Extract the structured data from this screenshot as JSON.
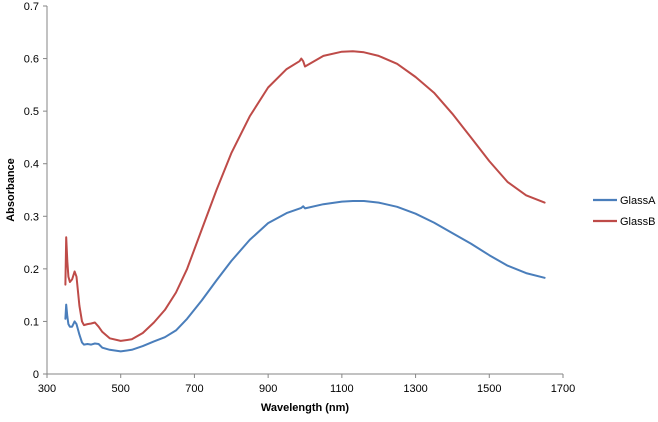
{
  "chart_data": {
    "type": "line",
    "title": "",
    "xlabel": "Wavelength (nm)",
    "ylabel": "Absorbance",
    "xlim": [
      300,
      1700
    ],
    "ylim": [
      0,
      0.7
    ],
    "x_ticks": [
      "300",
      "500",
      "700",
      "900",
      "1100",
      "1300",
      "1500",
      "1700"
    ],
    "y_ticks": [
      "0",
      "0.1",
      "0.2",
      "0.3",
      "0.4",
      "0.5",
      "0.6",
      "0.7"
    ],
    "grid": false,
    "legend_position": "right",
    "series": [
      {
        "name": "GlassA",
        "color": "#4A7EBB",
        "x": [
          350,
          352,
          355,
          358,
          362,
          368,
          375,
          380,
          388,
          395,
          400,
          410,
          420,
          430,
          440,
          450,
          470,
          500,
          530,
          560,
          590,
          620,
          650,
          680,
          720,
          760,
          800,
          850,
          900,
          950,
          990,
          995,
          1000,
          1050,
          1100,
          1130,
          1160,
          1200,
          1250,
          1300,
          1350,
          1400,
          1450,
          1500,
          1550,
          1600,
          1650
        ],
        "y": [
          0.105,
          0.132,
          0.11,
          0.095,
          0.09,
          0.09,
          0.1,
          0.095,
          0.075,
          0.06,
          0.056,
          0.057,
          0.056,
          0.058,
          0.057,
          0.05,
          0.046,
          0.043,
          0.046,
          0.053,
          0.062,
          0.07,
          0.083,
          0.105,
          0.14,
          0.178,
          0.215,
          0.255,
          0.287,
          0.306,
          0.316,
          0.319,
          0.315,
          0.323,
          0.328,
          0.329,
          0.329,
          0.326,
          0.318,
          0.305,
          0.288,
          0.268,
          0.248,
          0.226,
          0.206,
          0.192,
          0.183
        ]
      },
      {
        "name": "GlassB",
        "color": "#BE4B48",
        "x": [
          350,
          352,
          355,
          358,
          362,
          368,
          375,
          380,
          388,
          395,
          400,
          410,
          420,
          430,
          440,
          450,
          470,
          500,
          530,
          560,
          590,
          620,
          650,
          680,
          720,
          760,
          800,
          850,
          900,
          950,
          985,
          990,
          995,
          1000,
          1050,
          1100,
          1130,
          1160,
          1200,
          1250,
          1300,
          1350,
          1400,
          1450,
          1500,
          1550,
          1600,
          1650
        ],
        "y": [
          0.17,
          0.26,
          0.215,
          0.185,
          0.175,
          0.18,
          0.195,
          0.185,
          0.13,
          0.1,
          0.093,
          0.095,
          0.096,
          0.098,
          0.09,
          0.08,
          0.068,
          0.063,
          0.066,
          0.078,
          0.098,
          0.122,
          0.155,
          0.2,
          0.275,
          0.35,
          0.42,
          0.49,
          0.545,
          0.58,
          0.595,
          0.6,
          0.595,
          0.585,
          0.605,
          0.613,
          0.614,
          0.612,
          0.605,
          0.59,
          0.565,
          0.535,
          0.495,
          0.45,
          0.405,
          0.365,
          0.34,
          0.326
        ]
      }
    ]
  }
}
